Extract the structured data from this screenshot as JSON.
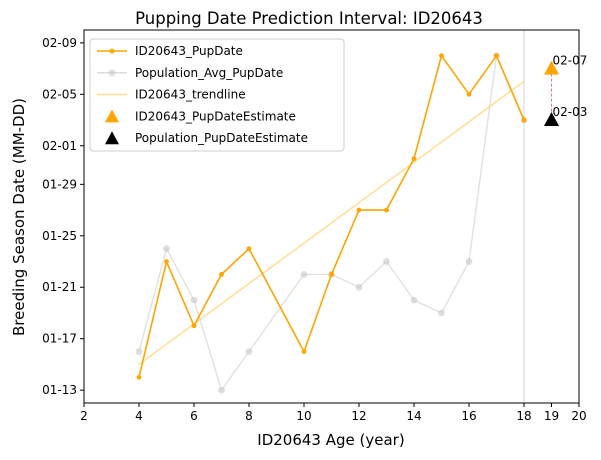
{
  "chart_data": {
    "type": "line",
    "title": "Pupping Date Prediction Interval: ID20643",
    "xlabel": "ID20643 Age (year)",
    "ylabel": "Breeding Season Date (MM-DD)",
    "xlim": [
      2,
      20
    ],
    "x_ticks": [
      2,
      4,
      6,
      8,
      10,
      12,
      14,
      16,
      18,
      19,
      20
    ],
    "y_ticks": [
      "01-13",
      "01-17",
      "01-21",
      "01-25",
      "01-29",
      "02-01",
      "02-05",
      "02-09"
    ],
    "ylim": [
      "01-12",
      "02-10"
    ],
    "grid": false,
    "legend_position": "upper-left",
    "vertical_line_x": 18,
    "series": [
      {
        "name": "ID20643_PupDate",
        "color": "#FFA500",
        "style": "line-with-dots",
        "x": [
          4,
          5,
          6,
          7,
          8,
          10,
          11,
          12,
          13,
          14,
          15,
          16,
          17,
          18
        ],
        "y": [
          "01-14",
          "01-23",
          "01-18",
          "01-22",
          "01-24",
          "01-16",
          "01-22",
          "01-27",
          "01-27",
          "01-31",
          "02-08",
          "02-05",
          "02-08",
          "02-03"
        ]
      },
      {
        "name": "Population_Avg_PupDate",
        "color": "#C8C8C8",
        "style": "line-with-dots",
        "x": [
          4,
          5,
          6,
          7,
          8,
          10,
          11,
          12,
          13,
          14,
          15,
          16,
          17,
          18
        ],
        "y": [
          "01-16",
          "01-24",
          "01-20",
          "01-13",
          "01-16",
          "01-22",
          "01-22",
          "01-21",
          "01-23",
          "01-20",
          "01-19",
          "01-23",
          "02-08",
          "02-03"
        ]
      },
      {
        "name": "ID20643_trendline",
        "color": "#FFD98A",
        "style": "line",
        "x": [
          4,
          18
        ],
        "y": [
          "01-15",
          "02-06"
        ]
      }
    ],
    "estimates": [
      {
        "name": "ID20643_PupDateEstimate",
        "color": "#FFA500",
        "x": 19,
        "y": "02-07",
        "label": "02-07"
      },
      {
        "name": "Population_PupDateEstimate",
        "color": "#000000",
        "x": 19,
        "y": "02-03",
        "label": "02-03"
      }
    ],
    "interval_line_color": "#E8737A"
  }
}
